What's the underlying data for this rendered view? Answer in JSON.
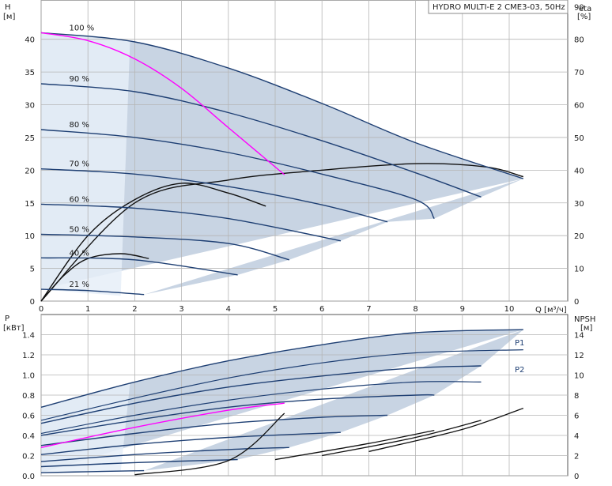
{
  "chart_data": [
    {
      "type": "line",
      "title": "HYDRO MULTI-E 2 CME3-03, 50Hz",
      "xlabel": "Q [м³/ч]",
      "ylabel_left": "H",
      "ylabel_left_unit": "[м]",
      "ylabel_right": "eta",
      "ylabel_right_unit": "[%]",
      "xlim": [
        0,
        11.25
      ],
      "ylim": [
        0,
        46
      ],
      "y2lim": [
        0,
        92
      ],
      "x_ticks": [
        0,
        1,
        2,
        3,
        4,
        5,
        6,
        7,
        8,
        9,
        10
      ],
      "y_ticks": [
        0,
        5,
        10,
        15,
        20,
        25,
        30,
        35,
        40
      ],
      "y2_ticks": [
        0,
        10,
        20,
        30,
        40,
        50,
        60,
        70,
        80,
        90
      ],
      "grid": true,
      "colors": {
        "curve": "#1e3f73",
        "eta": "#111111",
        "best": "#ff00ff",
        "region": "#c8d4e3",
        "region_light": "#e6eff8"
      },
      "speed_labels": [
        "100 %",
        "90 %",
        "80 %",
        "70 %",
        "60 %",
        "50 %",
        "40 %",
        "21 %"
      ],
      "speed_fractions": [
        1.0,
        0.9,
        0.8,
        0.7,
        0.6,
        0.5,
        0.4,
        0.21
      ],
      "h_series": [
        {
          "speed": "100 %",
          "x": [
            0,
            2,
            4,
            6,
            8,
            10.3
          ],
          "y": [
            41,
            39.6,
            35.6,
            30.2,
            24.2,
            18.7
          ]
        },
        {
          "speed": "90 %",
          "x": [
            0,
            2,
            4,
            6,
            8,
            9.4
          ],
          "y": [
            33.2,
            32.0,
            28.8,
            24.5,
            19.6,
            15.9
          ]
        },
        {
          "speed": "80 %",
          "x": [
            0,
            2,
            4,
            6,
            8,
            8.4
          ],
          "y": [
            26.2,
            25.0,
            22.7,
            19.4,
            15.5,
            12.6
          ]
        },
        {
          "speed": "70 %",
          "x": [
            0,
            2,
            4,
            6,
            7.4
          ],
          "y": [
            20.2,
            19.4,
            17.5,
            14.7,
            12.1
          ]
        },
        {
          "speed": "60 %",
          "x": [
            0,
            2,
            4,
            6.4
          ],
          "y": [
            14.8,
            14.2,
            12.6,
            9.2
          ]
        },
        {
          "speed": "50 %",
          "x": [
            0,
            2,
            4,
            5.3
          ],
          "y": [
            10.2,
            9.8,
            8.8,
            6.3
          ]
        },
        {
          "speed": "40 %",
          "x": [
            0,
            2,
            4.2
          ],
          "y": [
            6.6,
            6.3,
            4.0
          ]
        },
        {
          "speed": "21 %",
          "x": [
            0,
            1,
            2.2
          ],
          "y": [
            1.8,
            1.6,
            1.0
          ]
        }
      ],
      "eta_series": [
        {
          "speed": "100 %",
          "x": [
            0,
            2,
            4,
            6,
            8,
            9.5,
            10.3
          ],
          "y": [
            0,
            30,
            37,
            40,
            42,
            41,
            38
          ]
        },
        {
          "speed": "50 %",
          "x": [
            0,
            1,
            2,
            3,
            4,
            4.8
          ],
          "y": [
            0,
            20,
            31,
            36,
            33,
            29
          ]
        },
        {
          "speed": "21 %",
          "x": [
            0,
            0.5,
            1,
            1.7,
            2.3
          ],
          "y": [
            0,
            8,
            13,
            14.5,
            13
          ]
        }
      ],
      "best_efficiency_line": {
        "x": [
          0,
          1,
          2,
          3,
          4,
          5.2
        ],
        "y": [
          41,
          39.8,
          37,
          32.5,
          26.5,
          19.3
        ]
      }
    },
    {
      "type": "line",
      "xlabel": "",
      "ylabel_left": "P",
      "ylabel_left_unit": "[кВт]",
      "ylabel_right": "NPSH",
      "ylabel_right_unit": "[м]",
      "xlim": [
        0,
        11.25
      ],
      "ylim": [
        0,
        1.6
      ],
      "y2lim": [
        0,
        16
      ],
      "y_ticks": [
        0.0,
        0.2,
        0.4,
        0.6,
        0.8,
        1.0,
        1.2,
        1.4
      ],
      "y2_ticks": [
        0,
        2,
        4,
        6,
        8,
        10,
        12,
        14
      ],
      "grid": true,
      "legend": [
        "P1",
        "P2"
      ],
      "p1_series": [
        {
          "speed": "100 %",
          "x": [
            0,
            2,
            4,
            6,
            8,
            10.3
          ],
          "y": [
            0.68,
            0.93,
            1.14,
            1.3,
            1.42,
            1.45
          ]
        },
        {
          "speed": "90 %",
          "x": [
            0,
            2,
            4,
            6,
            8,
            9.4
          ],
          "y": [
            0.52,
            0.72,
            0.88,
            0.99,
            1.07,
            1.09
          ]
        },
        {
          "speed": "80 %",
          "x": [
            0,
            2,
            4,
            6,
            8,
            8.4
          ],
          "y": [
            0.4,
            0.55,
            0.68,
            0.76,
            0.8,
            0.8
          ]
        },
        {
          "speed": "70 %",
          "x": [
            0,
            2,
            4,
            6,
            7.4
          ],
          "y": [
            0.3,
            0.42,
            0.52,
            0.58,
            0.6
          ]
        },
        {
          "speed": "60 %",
          "x": [
            0,
            2,
            4,
            6.4
          ],
          "y": [
            0.21,
            0.31,
            0.38,
            0.43
          ]
        },
        {
          "speed": "50 %",
          "x": [
            0,
            2,
            4,
            5.3
          ],
          "y": [
            0.14,
            0.21,
            0.26,
            0.28
          ]
        },
        {
          "speed": "40 %",
          "x": [
            0,
            2,
            4.2
          ],
          "y": [
            0.09,
            0.13,
            0.16
          ]
        },
        {
          "speed": "21 %",
          "x": [
            0,
            1,
            2.2
          ],
          "y": [
            0.03,
            0.04,
            0.05
          ]
        }
      ],
      "p2_series": [
        {
          "speed": "100 %",
          "x": [
            0,
            2,
            4,
            6,
            8,
            10.3
          ],
          "y": [
            0.55,
            0.77,
            0.97,
            1.12,
            1.22,
            1.25
          ]
        },
        {
          "speed": "90 %",
          "x": [
            0,
            2,
            4,
            6,
            8,
            9.4
          ],
          "y": [
            0.42,
            0.6,
            0.75,
            0.86,
            0.93,
            0.93
          ]
        }
      ],
      "npsh_series": [
        {
          "x": [
            2,
            4,
            5.2
          ],
          "y": [
            0.1,
            1.5,
            6.2
          ]
        },
        {
          "x": [
            5,
            7,
            8.4
          ],
          "y": [
            1.6,
            3.2,
            4.5
          ]
        },
        {
          "x": [
            6,
            8,
            9.4
          ],
          "y": [
            2,
            3.8,
            5.5
          ]
        },
        {
          "x": [
            7,
            9,
            10.3
          ],
          "y": [
            2.4,
            4.6,
            6.7
          ]
        }
      ],
      "p_best_line": {
        "x": [
          0,
          2,
          4,
          5.2
        ],
        "y": [
          0.28,
          0.48,
          0.65,
          0.72
        ]
      }
    }
  ]
}
